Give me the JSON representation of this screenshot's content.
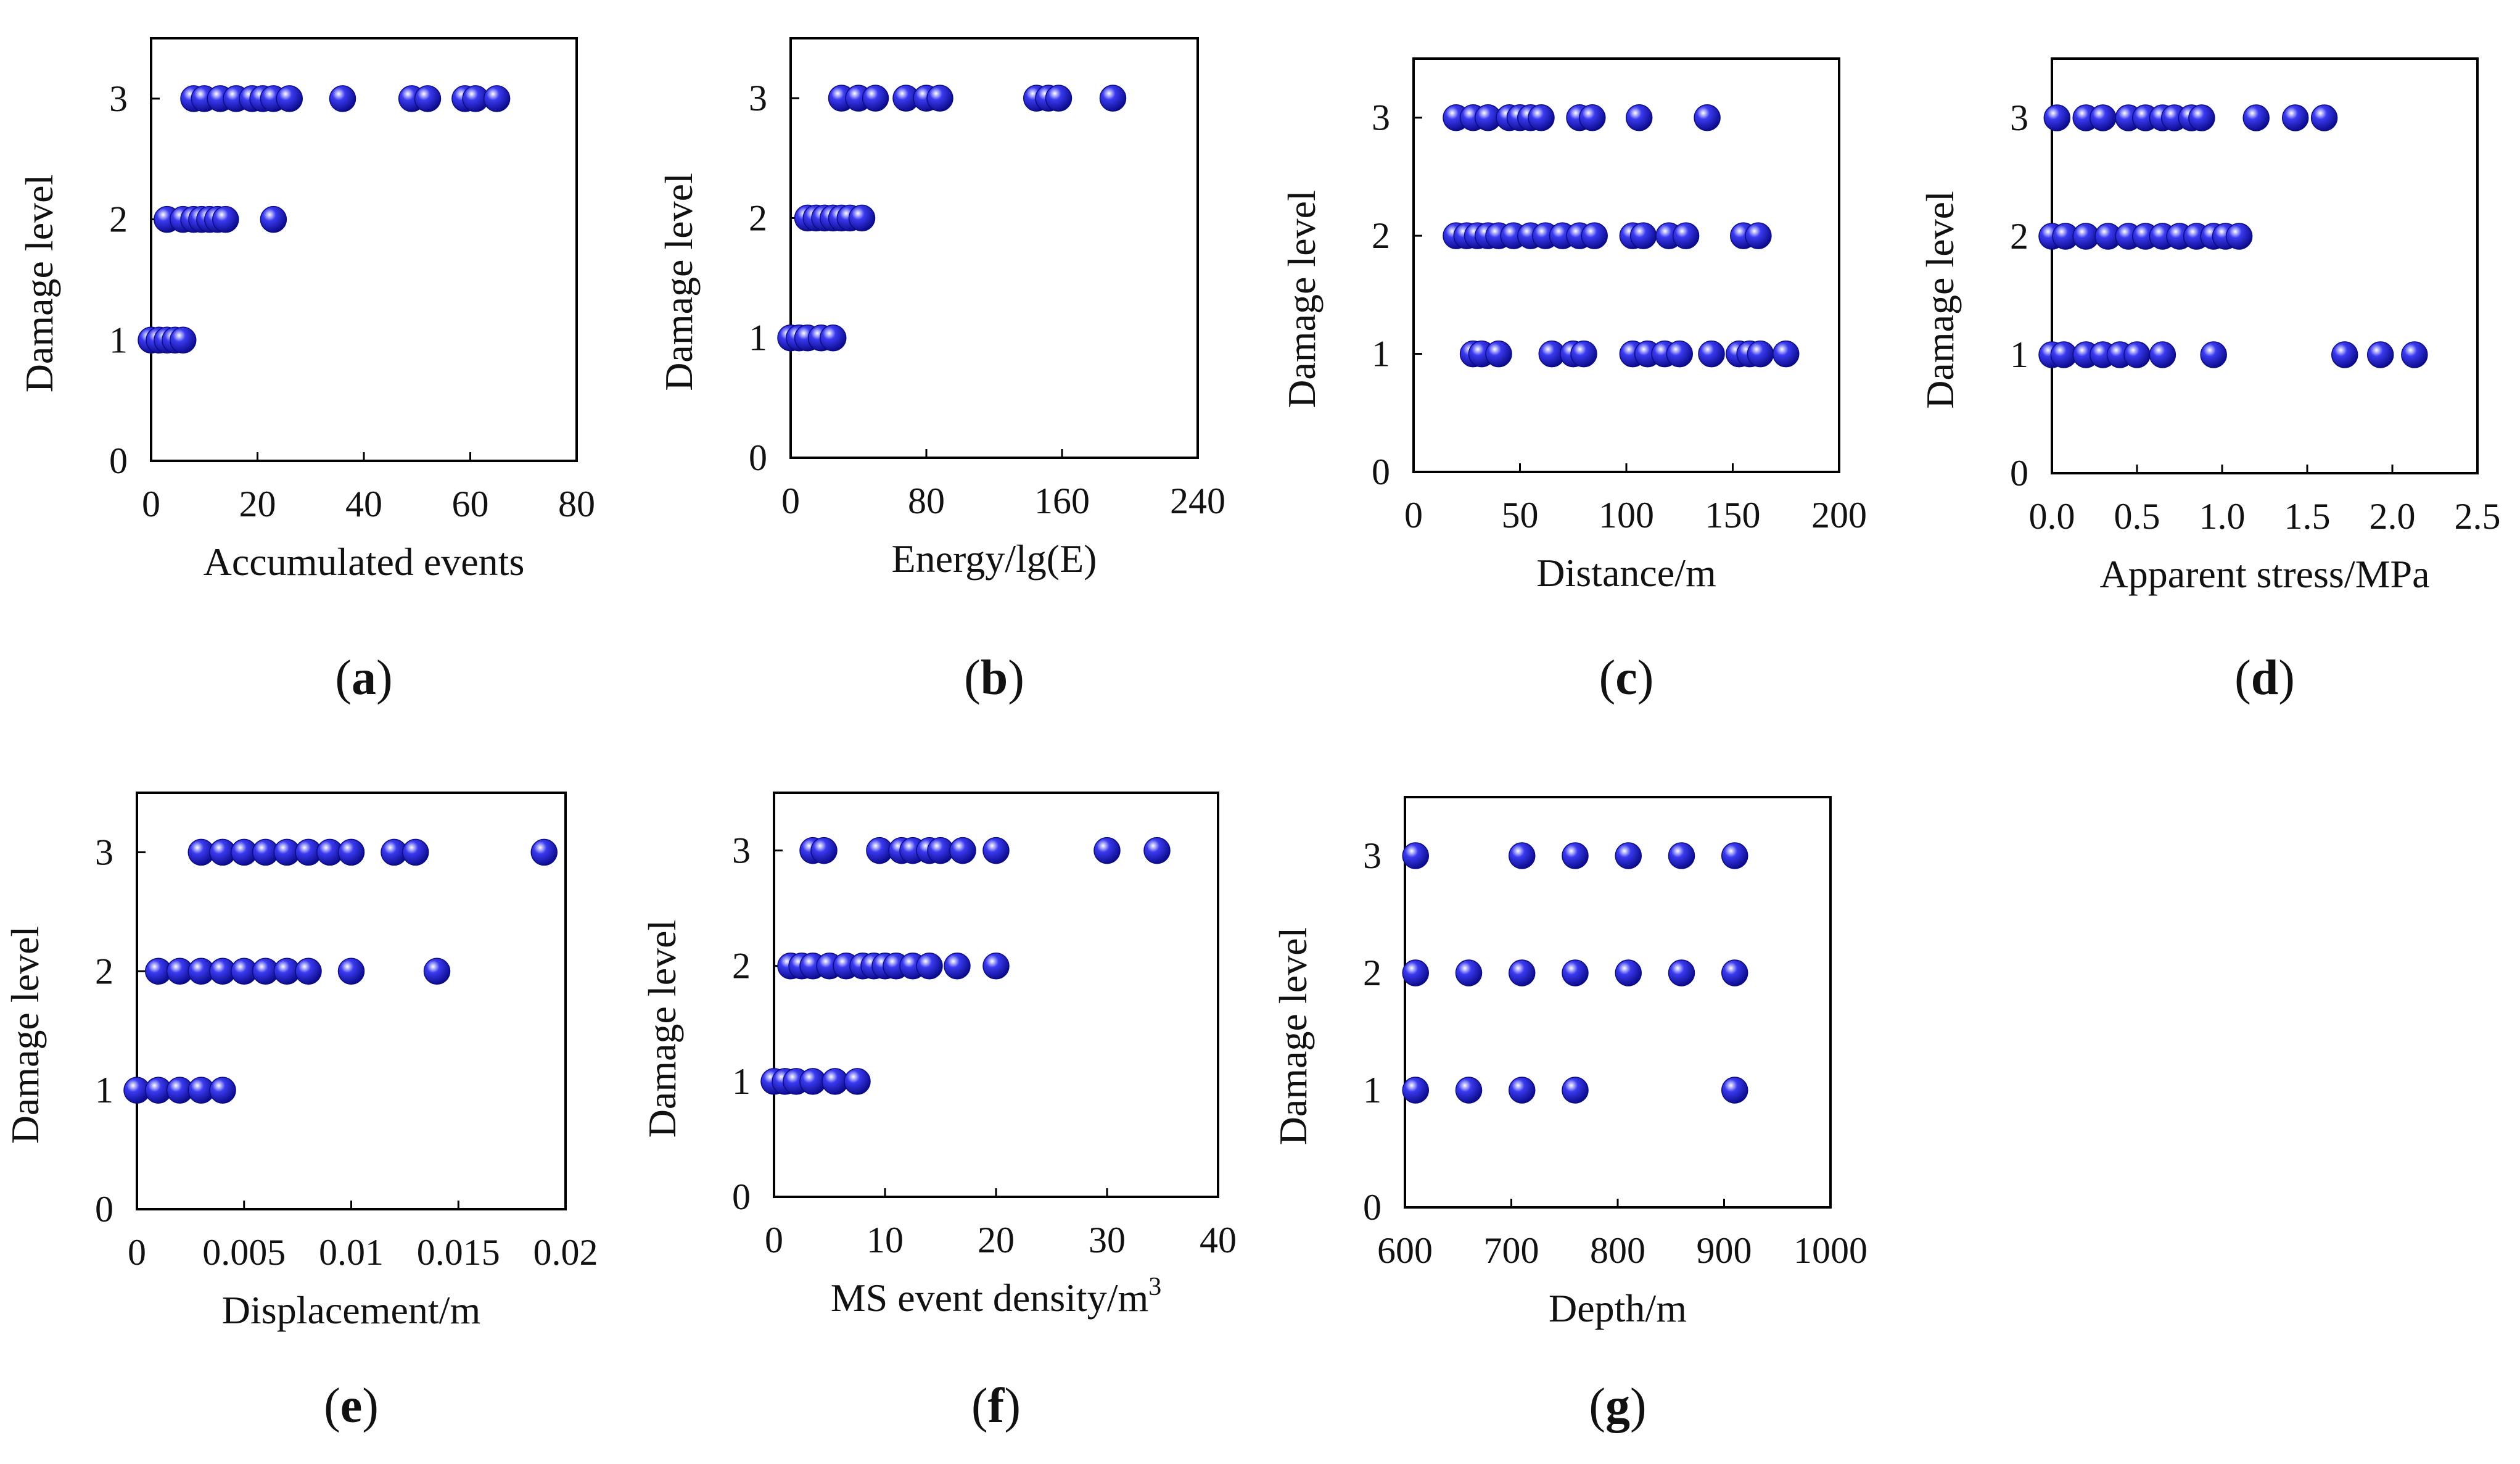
{
  "marker_color": "#3a3af0",
  "marker_highlight": "#ffffff",
  "marker_shadow": "#0b0b8a",
  "chart_data": [
    {
      "type": "scatter",
      "panel": "(a)",
      "label_letter": "a",
      "xlabel": "Accumulated events",
      "ylabel": "Damage level",
      "xlim": [
        0,
        80
      ],
      "ylim": [
        0,
        3.5
      ],
      "xticks": [
        0,
        20,
        40,
        60,
        80
      ],
      "xtick_labels": [
        "0",
        "20",
        "40",
        "60",
        "80"
      ],
      "yticks": [
        0,
        1,
        2,
        3
      ],
      "points": [
        {
          "x": 0,
          "y": 1
        },
        {
          "x": 1.5,
          "y": 1
        },
        {
          "x": 3,
          "y": 1
        },
        {
          "x": 4.5,
          "y": 1
        },
        {
          "x": 6,
          "y": 1
        },
        {
          "x": 3,
          "y": 2
        },
        {
          "x": 6,
          "y": 2
        },
        {
          "x": 8,
          "y": 2
        },
        {
          "x": 9.5,
          "y": 2
        },
        {
          "x": 11,
          "y": 2
        },
        {
          "x": 12.5,
          "y": 2
        },
        {
          "x": 14,
          "y": 2
        },
        {
          "x": 23,
          "y": 2
        },
        {
          "x": 8,
          "y": 3
        },
        {
          "x": 10,
          "y": 3
        },
        {
          "x": 13,
          "y": 3
        },
        {
          "x": 16,
          "y": 3
        },
        {
          "x": 19,
          "y": 3
        },
        {
          "x": 21,
          "y": 3
        },
        {
          "x": 23,
          "y": 3
        },
        {
          "x": 26,
          "y": 3
        },
        {
          "x": 36,
          "y": 3
        },
        {
          "x": 49,
          "y": 3
        },
        {
          "x": 52,
          "y": 3
        },
        {
          "x": 59,
          "y": 3
        },
        {
          "x": 61,
          "y": 3
        },
        {
          "x": 65,
          "y": 3
        }
      ]
    },
    {
      "type": "scatter",
      "panel": "(b)",
      "label_letter": "b",
      "xlabel": "Energy/lg(E)",
      "ylabel": "Damage level",
      "xlim": [
        0,
        240
      ],
      "ylim": [
        0,
        3.5
      ],
      "xticks": [
        0,
        80,
        160,
        240
      ],
      "xtick_labels": [
        "0",
        "80",
        "160",
        "240"
      ],
      "yticks": [
        0,
        1,
        2,
        3
      ],
      "points": [
        {
          "x": 0,
          "y": 1
        },
        {
          "x": 5,
          "y": 1
        },
        {
          "x": 10,
          "y": 1
        },
        {
          "x": 18,
          "y": 1
        },
        {
          "x": 25,
          "y": 1
        },
        {
          "x": 10,
          "y": 2
        },
        {
          "x": 15,
          "y": 2
        },
        {
          "x": 20,
          "y": 2
        },
        {
          "x": 25,
          "y": 2
        },
        {
          "x": 30,
          "y": 2
        },
        {
          "x": 35,
          "y": 2
        },
        {
          "x": 42,
          "y": 2
        },
        {
          "x": 30,
          "y": 3
        },
        {
          "x": 40,
          "y": 3
        },
        {
          "x": 50,
          "y": 3
        },
        {
          "x": 68,
          "y": 3
        },
        {
          "x": 80,
          "y": 3
        },
        {
          "x": 88,
          "y": 3
        },
        {
          "x": 145,
          "y": 3
        },
        {
          "x": 152,
          "y": 3
        },
        {
          "x": 158,
          "y": 3
        },
        {
          "x": 190,
          "y": 3
        }
      ]
    },
    {
      "type": "scatter",
      "panel": "(c)",
      "label_letter": "c",
      "xlabel": "Distance/m",
      "ylabel": "Damage level",
      "xlim": [
        0,
        200
      ],
      "ylim": [
        0,
        3.5
      ],
      "xticks": [
        0,
        50,
        100,
        150,
        200
      ],
      "xtick_labels": [
        "0",
        "50",
        "100",
        "150",
        "200"
      ],
      "yticks": [
        0,
        1,
        2,
        3
      ],
      "points": [
        {
          "x": 28,
          "y": 1
        },
        {
          "x": 32,
          "y": 1
        },
        {
          "x": 40,
          "y": 1
        },
        {
          "x": 65,
          "y": 1
        },
        {
          "x": 75,
          "y": 1
        },
        {
          "x": 80,
          "y": 1
        },
        {
          "x": 103,
          "y": 1
        },
        {
          "x": 110,
          "y": 1
        },
        {
          "x": 118,
          "y": 1
        },
        {
          "x": 125,
          "y": 1
        },
        {
          "x": 140,
          "y": 1
        },
        {
          "x": 153,
          "y": 1
        },
        {
          "x": 158,
          "y": 1
        },
        {
          "x": 163,
          "y": 1
        },
        {
          "x": 175,
          "y": 1
        },
        {
          "x": 20,
          "y": 2
        },
        {
          "x": 25,
          "y": 2
        },
        {
          "x": 30,
          "y": 2
        },
        {
          "x": 35,
          "y": 2
        },
        {
          "x": 40,
          "y": 2
        },
        {
          "x": 47,
          "y": 2
        },
        {
          "x": 55,
          "y": 2
        },
        {
          "x": 62,
          "y": 2
        },
        {
          "x": 70,
          "y": 2
        },
        {
          "x": 78,
          "y": 2
        },
        {
          "x": 85,
          "y": 2
        },
        {
          "x": 103,
          "y": 2
        },
        {
          "x": 108,
          "y": 2
        },
        {
          "x": 120,
          "y": 2
        },
        {
          "x": 128,
          "y": 2
        },
        {
          "x": 155,
          "y": 2
        },
        {
          "x": 162,
          "y": 2
        },
        {
          "x": 20,
          "y": 3
        },
        {
          "x": 28,
          "y": 3
        },
        {
          "x": 35,
          "y": 3
        },
        {
          "x": 45,
          "y": 3
        },
        {
          "x": 50,
          "y": 3
        },
        {
          "x": 55,
          "y": 3
        },
        {
          "x": 60,
          "y": 3
        },
        {
          "x": 78,
          "y": 3
        },
        {
          "x": 84,
          "y": 3
        },
        {
          "x": 106,
          "y": 3
        },
        {
          "x": 138,
          "y": 3
        }
      ]
    },
    {
      "type": "scatter",
      "panel": "(d)",
      "label_letter": "d",
      "xlabel": "Apparent stress/MPa",
      "ylabel": "Damage level",
      "xlim": [
        0,
        2.5
      ],
      "ylim": [
        0,
        3.5
      ],
      "xticks": [
        0,
        0.5,
        1.0,
        1.5,
        2.0,
        2.5
      ],
      "xtick_labels": [
        "0.0",
        "0.5",
        "1.0",
        "1.5",
        "2.0",
        "2.5"
      ],
      "yticks": [
        0,
        1,
        2,
        3
      ],
      "points": [
        {
          "x": 0.0,
          "y": 1
        },
        {
          "x": 0.07,
          "y": 1
        },
        {
          "x": 0.2,
          "y": 1
        },
        {
          "x": 0.3,
          "y": 1
        },
        {
          "x": 0.4,
          "y": 1
        },
        {
          "x": 0.5,
          "y": 1
        },
        {
          "x": 0.65,
          "y": 1
        },
        {
          "x": 0.95,
          "y": 1
        },
        {
          "x": 1.72,
          "y": 1
        },
        {
          "x": 1.93,
          "y": 1
        },
        {
          "x": 2.13,
          "y": 1
        },
        {
          "x": 0.0,
          "y": 2
        },
        {
          "x": 0.08,
          "y": 2
        },
        {
          "x": 0.2,
          "y": 2
        },
        {
          "x": 0.33,
          "y": 2
        },
        {
          "x": 0.45,
          "y": 2
        },
        {
          "x": 0.55,
          "y": 2
        },
        {
          "x": 0.65,
          "y": 2
        },
        {
          "x": 0.75,
          "y": 2
        },
        {
          "x": 0.85,
          "y": 2
        },
        {
          "x": 0.95,
          "y": 2
        },
        {
          "x": 1.02,
          "y": 2
        },
        {
          "x": 1.1,
          "y": 2
        },
        {
          "x": 0.03,
          "y": 3
        },
        {
          "x": 0.2,
          "y": 3
        },
        {
          "x": 0.3,
          "y": 3
        },
        {
          "x": 0.45,
          "y": 3
        },
        {
          "x": 0.55,
          "y": 3
        },
        {
          "x": 0.65,
          "y": 3
        },
        {
          "x": 0.72,
          "y": 3
        },
        {
          "x": 0.82,
          "y": 3
        },
        {
          "x": 0.88,
          "y": 3
        },
        {
          "x": 1.2,
          "y": 3
        },
        {
          "x": 1.43,
          "y": 3
        },
        {
          "x": 1.6,
          "y": 3
        }
      ]
    },
    {
      "type": "scatter",
      "panel": "(e)",
      "label_letter": "e",
      "xlabel": "Displacement/m",
      "ylabel": "Damage level",
      "xlim": [
        0,
        0.02
      ],
      "ylim": [
        0,
        3.5
      ],
      "xticks": [
        0,
        0.005,
        0.01,
        0.015,
        0.02
      ],
      "xtick_labels": [
        "0",
        "0.005",
        "0.01",
        "0.015",
        "0.02"
      ],
      "yticks": [
        0,
        1,
        2,
        3
      ],
      "points": [
        {
          "x": 0.0,
          "y": 1
        },
        {
          "x": 0.001,
          "y": 1
        },
        {
          "x": 0.002,
          "y": 1
        },
        {
          "x": 0.003,
          "y": 1
        },
        {
          "x": 0.004,
          "y": 1
        },
        {
          "x": 0.001,
          "y": 2
        },
        {
          "x": 0.002,
          "y": 2
        },
        {
          "x": 0.003,
          "y": 2
        },
        {
          "x": 0.004,
          "y": 2
        },
        {
          "x": 0.005,
          "y": 2
        },
        {
          "x": 0.006,
          "y": 2
        },
        {
          "x": 0.007,
          "y": 2
        },
        {
          "x": 0.008,
          "y": 2
        },
        {
          "x": 0.01,
          "y": 2
        },
        {
          "x": 0.014,
          "y": 2
        },
        {
          "x": 0.003,
          "y": 3
        },
        {
          "x": 0.004,
          "y": 3
        },
        {
          "x": 0.005,
          "y": 3
        },
        {
          "x": 0.006,
          "y": 3
        },
        {
          "x": 0.007,
          "y": 3
        },
        {
          "x": 0.008,
          "y": 3
        },
        {
          "x": 0.009,
          "y": 3
        },
        {
          "x": 0.01,
          "y": 3
        },
        {
          "x": 0.012,
          "y": 3
        },
        {
          "x": 0.013,
          "y": 3
        },
        {
          "x": 0.019,
          "y": 3
        }
      ]
    },
    {
      "type": "scatter",
      "panel": "(f)",
      "label_letter": "f",
      "xlabel": "MS event density/m",
      "xlabel_sup": "3",
      "ylabel": "Damage level",
      "xlim": [
        0,
        40
      ],
      "ylim": [
        0,
        3.5
      ],
      "xticks": [
        0,
        10,
        20,
        30,
        40
      ],
      "xtick_labels": [
        "0",
        "10",
        "20",
        "30",
        "40"
      ],
      "yticks": [
        0,
        1,
        2,
        3
      ],
      "points": [
        {
          "x": 0,
          "y": 1
        },
        {
          "x": 1,
          "y": 1
        },
        {
          "x": 2,
          "y": 1
        },
        {
          "x": 3.5,
          "y": 1
        },
        {
          "x": 5.5,
          "y": 1
        },
        {
          "x": 7.5,
          "y": 1
        },
        {
          "x": 1.5,
          "y": 2
        },
        {
          "x": 2.5,
          "y": 2
        },
        {
          "x": 3.5,
          "y": 2
        },
        {
          "x": 5,
          "y": 2
        },
        {
          "x": 6.5,
          "y": 2
        },
        {
          "x": 8,
          "y": 2
        },
        {
          "x": 9,
          "y": 2
        },
        {
          "x": 10,
          "y": 2
        },
        {
          "x": 11,
          "y": 2
        },
        {
          "x": 12.5,
          "y": 2
        },
        {
          "x": 14,
          "y": 2
        },
        {
          "x": 16.5,
          "y": 2
        },
        {
          "x": 20,
          "y": 2
        },
        {
          "x": 3.5,
          "y": 3
        },
        {
          "x": 4.5,
          "y": 3
        },
        {
          "x": 9.5,
          "y": 3
        },
        {
          "x": 11.5,
          "y": 3
        },
        {
          "x": 12.5,
          "y": 3
        },
        {
          "x": 14,
          "y": 3
        },
        {
          "x": 15,
          "y": 3
        },
        {
          "x": 17,
          "y": 3
        },
        {
          "x": 20,
          "y": 3
        },
        {
          "x": 30,
          "y": 3
        },
        {
          "x": 34.5,
          "y": 3
        }
      ]
    },
    {
      "type": "scatter",
      "panel": "(g)",
      "label_letter": "g",
      "xlabel": "Depth/m",
      "ylabel": "Damage level",
      "xlim": [
        600,
        1000
      ],
      "ylim": [
        0,
        3.5
      ],
      "xticks": [
        600,
        700,
        800,
        900,
        1000
      ],
      "xtick_labels": [
        "600",
        "700",
        "800",
        "900",
        "1000"
      ],
      "yticks": [
        0,
        1,
        2,
        3
      ],
      "points": [
        {
          "x": 610,
          "y": 1
        },
        {
          "x": 660,
          "y": 1
        },
        {
          "x": 710,
          "y": 1
        },
        {
          "x": 760,
          "y": 1
        },
        {
          "x": 910,
          "y": 1
        },
        {
          "x": 610,
          "y": 2
        },
        {
          "x": 660,
          "y": 2
        },
        {
          "x": 710,
          "y": 2
        },
        {
          "x": 760,
          "y": 2
        },
        {
          "x": 810,
          "y": 2
        },
        {
          "x": 860,
          "y": 2
        },
        {
          "x": 910,
          "y": 2
        },
        {
          "x": 610,
          "y": 3
        },
        {
          "x": 710,
          "y": 3
        },
        {
          "x": 760,
          "y": 3
        },
        {
          "x": 810,
          "y": 3
        },
        {
          "x": 860,
          "y": 3
        },
        {
          "x": 910,
          "y": 3
        }
      ]
    }
  ]
}
